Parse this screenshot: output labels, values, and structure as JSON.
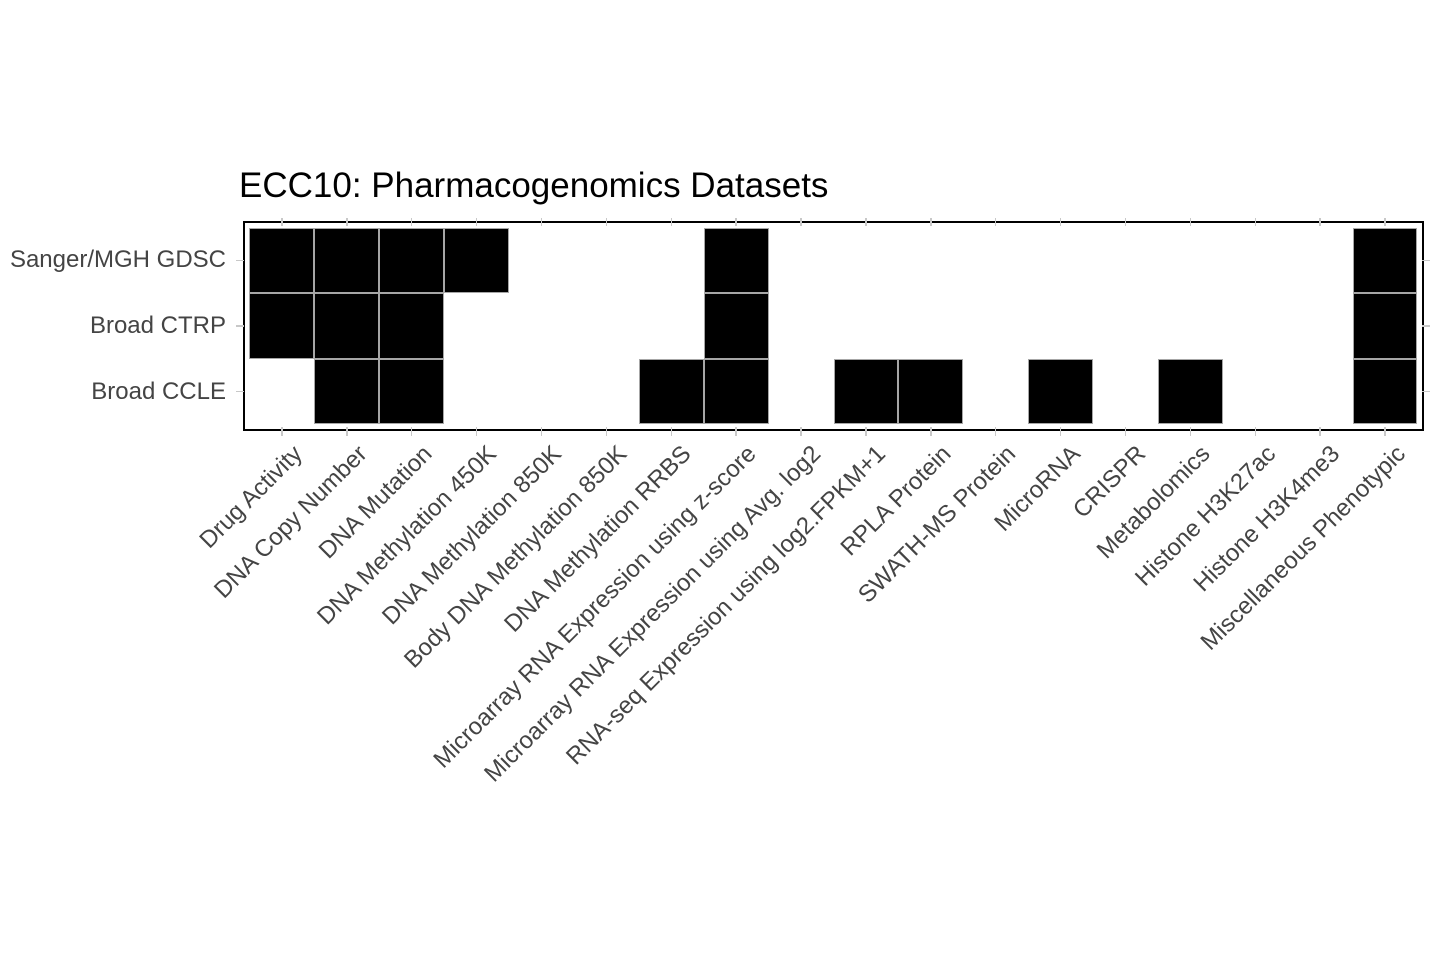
{
  "chart_data": {
    "type": "heatmap",
    "title": "ECC10: Pharmacogenomics Datasets",
    "rows": [
      "Sanger/MGH GDSC",
      "Broad CTRP",
      "Broad CCLE"
    ],
    "columns": [
      "Drug Activity",
      "DNA Copy Number",
      "DNA Mutation",
      "DNA Methylation 450K",
      "DNA Methylation 850K",
      "Body DNA Methylation 850K",
      "DNA Methylation RRBS",
      "Microarray RNA Expression using z-score",
      "Microarray RNA Expression using Avg. log2",
      "RNA-seq Expression using log2.FPKM+1",
      "RPLA Protein",
      "SWATH-MS Protein",
      "MicroRNA",
      "CRISPR",
      "Metabolomics",
      "Histone H3K27ac",
      "Histone H3K4me3",
      "Miscellaneous Phenotypic"
    ],
    "values": [
      [
        1,
        1,
        1,
        1,
        0,
        0,
        0,
        1,
        0,
        0,
        0,
        0,
        0,
        0,
        0,
        0,
        0,
        1
      ],
      [
        1,
        1,
        1,
        0,
        0,
        0,
        0,
        1,
        0,
        0,
        0,
        0,
        0,
        0,
        0,
        0,
        0,
        1
      ],
      [
        0,
        1,
        1,
        0,
        0,
        0,
        1,
        1,
        0,
        1,
        1,
        0,
        1,
        0,
        1,
        0,
        0,
        1
      ]
    ],
    "value_meaning": "1 = dataset available (black tile), 0 = not available (white)",
    "legend": "none",
    "x_tick_rotation_deg": 45,
    "colors": {
      "filled": "#000000",
      "empty": "#ffffff",
      "cell_border": "#a6a6a6",
      "panel_border": "#000000",
      "axis_text": "#444444",
      "title_text": "#000000",
      "tick": "#c8c8c8",
      "background": "#ffffff"
    }
  }
}
